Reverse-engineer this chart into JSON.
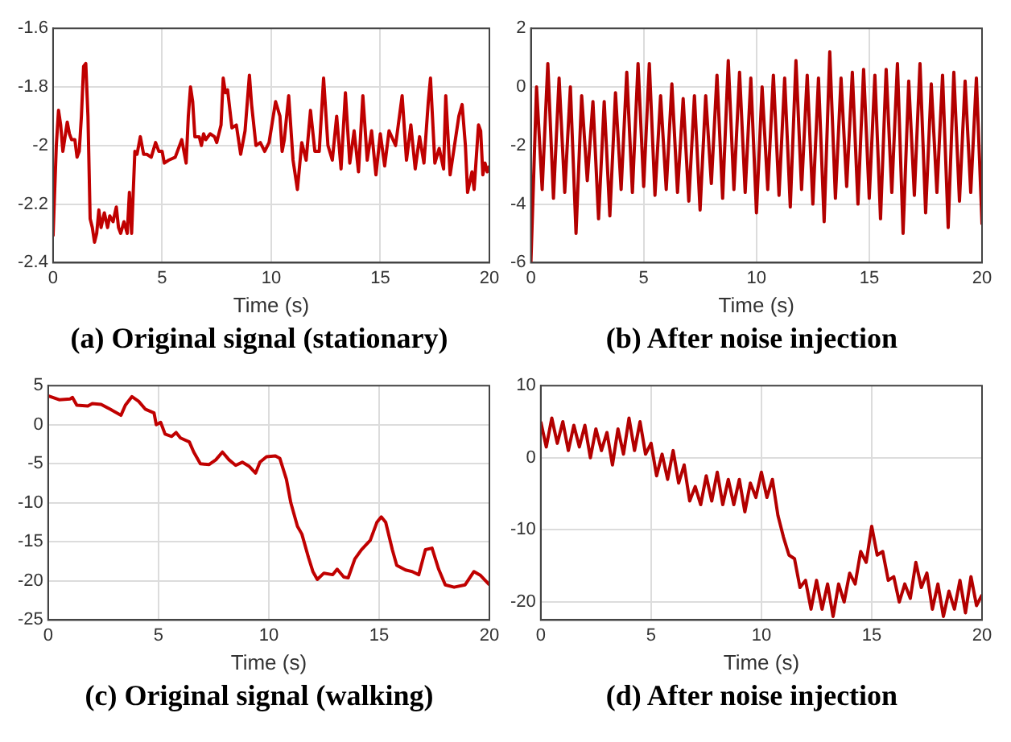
{
  "chart_data": [
    {
      "type": "line",
      "title": "(a) Original signal (stationary)",
      "xlabel": "Time (s)",
      "color": "#c00000",
      "marker": "none",
      "grid": true,
      "xlim": [
        0,
        20
      ],
      "xticks": [
        0,
        5,
        10,
        15,
        20
      ],
      "ylim": [
        -2.4,
        -1.6
      ],
      "yticks": [
        -2.4,
        -2.2,
        -2,
        -1.8,
        -1.6
      ],
      "x": [
        0,
        0.15,
        0.25,
        0.35,
        0.45,
        0.55,
        0.65,
        0.75,
        0.85,
        1.0,
        1.1,
        1.2,
        1.3,
        1.4,
        1.5,
        1.6,
        1.7,
        1.8,
        1.9,
        2.0,
        2.1,
        2.2,
        2.35,
        2.5,
        2.6,
        2.75,
        2.9,
        3.0,
        3.1,
        3.25,
        3.4,
        3.5,
        3.6,
        3.75,
        3.85,
        4.0,
        4.15,
        4.3,
        4.5,
        4.7,
        4.85,
        5.0,
        5.1,
        5.3,
        5.6,
        5.9,
        6.0,
        6.1,
        6.2,
        6.3,
        6.4,
        6.5,
        6.7,
        6.8,
        6.9,
        7.0,
        7.2,
        7.4,
        7.5,
        7.7,
        7.8,
        7.9,
        8.0,
        8.2,
        8.4,
        8.6,
        8.8,
        9.0,
        9.1,
        9.3,
        9.5,
        9.7,
        9.9,
        10.2,
        10.4,
        10.5,
        10.6,
        10.8,
        11.0,
        11.2,
        11.4,
        11.6,
        11.8,
        12.0,
        12.2,
        12.4,
        12.6,
        12.8,
        13.0,
        13.2,
        13.4,
        13.6,
        13.8,
        14.0,
        14.2,
        14.4,
        14.6,
        14.8,
        15.0,
        15.2,
        15.4,
        15.7,
        16.0,
        16.2,
        16.4,
        16.6,
        16.8,
        17.0,
        17.2,
        17.3,
        17.5,
        17.7,
        17.9,
        18.0,
        18.2,
        18.4,
        18.6,
        18.75,
        18.9,
        19.0,
        19.2,
        19.3,
        19.5,
        19.6,
        19.7,
        19.8,
        19.9,
        20.0
      ],
      "values": [
        -2.31,
        -2.0,
        -1.88,
        -1.93,
        -2.02,
        -1.97,
        -1.92,
        -1.96,
        -1.98,
        -1.98,
        -2.04,
        -2.02,
        -1.9,
        -1.73,
        -1.72,
        -1.9,
        -2.25,
        -2.28,
        -2.33,
        -2.3,
        -2.22,
        -2.28,
        -2.23,
        -2.28,
        -2.24,
        -2.26,
        -2.21,
        -2.28,
        -2.3,
        -2.26,
        -2.3,
        -2.16,
        -2.3,
        -2.02,
        -2.03,
        -1.97,
        -2.03,
        -2.03,
        -2.04,
        -1.99,
        -2.02,
        -2.02,
        -2.06,
        -2.05,
        -2.04,
        -1.98,
        -2.02,
        -2.06,
        -1.9,
        -1.8,
        -1.85,
        -1.97,
        -1.97,
        -2.0,
        -1.96,
        -1.98,
        -1.96,
        -1.97,
        -1.99,
        -1.93,
        -1.77,
        -1.82,
        -1.81,
        -1.94,
        -1.93,
        -2.03,
        -1.95,
        -1.76,
        -1.86,
        -2.0,
        -1.99,
        -2.02,
        -1.99,
        -1.85,
        -1.9,
        -2.02,
        -1.98,
        -1.83,
        -2.05,
        -2.15,
        -1.99,
        -2.05,
        -1.88,
        -2.02,
        -2.02,
        -1.77,
        -2.0,
        -2.05,
        -1.9,
        -2.08,
        -1.82,
        -2.06,
        -1.95,
        -2.09,
        -1.83,
        -2.05,
        -1.95,
        -2.1,
        -1.96,
        -2.07,
        -1.95,
        -2.0,
        -1.83,
        -2.05,
        -1.93,
        -2.08,
        -1.97,
        -2.06,
        -1.85,
        -1.77,
        -2.06,
        -2.01,
        -2.08,
        -1.83,
        -2.1,
        -2.0,
        -1.9,
        -1.86,
        -2.0,
        -2.16,
        -2.09,
        -2.15,
        -1.93,
        -1.95,
        -2.1,
        -2.06,
        -2.09,
        -2.07
      ]
    },
    {
      "type": "line",
      "title": "(b) After noise injection",
      "xlabel": "Time (s)",
      "color": "#b30000",
      "marker": "none",
      "grid": true,
      "xlim": [
        0,
        20
      ],
      "xticks": [
        0,
        5,
        10,
        15,
        20
      ],
      "ylim": [
        -6,
        2
      ],
      "yticks": [
        -6,
        -4,
        -2,
        0,
        2
      ],
      "x": [
        0,
        0.25,
        0.5,
        0.75,
        1,
        1.25,
        1.5,
        1.75,
        2,
        2.25,
        2.5,
        2.75,
        3,
        3.25,
        3.5,
        3.75,
        4,
        4.25,
        4.5,
        4.75,
        5,
        5.25,
        5.5,
        5.75,
        6,
        6.25,
        6.5,
        6.75,
        7,
        7.25,
        7.5,
        7.75,
        8,
        8.25,
        8.5,
        8.75,
        9,
        9.25,
        9.5,
        9.75,
        10,
        10.25,
        10.5,
        10.75,
        11,
        11.25,
        11.5,
        11.75,
        12,
        12.25,
        12.5,
        12.75,
        13,
        13.25,
        13.5,
        13.75,
        14,
        14.25,
        14.5,
        14.75,
        15,
        15.25,
        15.5,
        15.75,
        16,
        16.25,
        16.5,
        16.75,
        17,
        17.25,
        17.5,
        17.75,
        18,
        18.25,
        18.5,
        18.75,
        19,
        19.25,
        19.5,
        19.75,
        20
      ],
      "values": [
        -6,
        0,
        -3.5,
        0.8,
        -3.8,
        0.3,
        -3.6,
        0,
        -5,
        -0.3,
        -3.2,
        -0.5,
        -4.5,
        -0.5,
        -4.4,
        -0.2,
        -3.5,
        0.5,
        -3.6,
        0.8,
        -3.4,
        0.8,
        -3.7,
        -0.3,
        -3.5,
        0.1,
        -3.6,
        -0.4,
        -3.9,
        -0.3,
        -4.2,
        -0.3,
        -3.3,
        0.4,
        -3.8,
        0.9,
        -3.5,
        0.5,
        -3.6,
        0.3,
        -4.3,
        0,
        -3.5,
        0.4,
        -3.7,
        0.3,
        -4.1,
        0.9,
        -3.5,
        0.4,
        -4,
        0.3,
        -4.6,
        1.2,
        -3.8,
        0.3,
        -3.4,
        0.5,
        -4,
        0.6,
        -3.8,
        0.4,
        -4.5,
        0.6,
        -3.6,
        0.8,
        -5,
        0.2,
        -3.7,
        0.8,
        -4.3,
        0.1,
        -3.6,
        0.4,
        -4.8,
        0.5,
        -3.9,
        0.2,
        -3.6,
        0.3,
        -4.7
      ]
    },
    {
      "type": "line",
      "title": "(c) Original signal (walking)",
      "xlabel": "Time (s)",
      "color": "#c00000",
      "marker": "none",
      "grid": true,
      "xlim": [
        0,
        20
      ],
      "xticks": [
        0,
        5,
        10,
        15,
        20
      ],
      "ylim": [
        -25,
        5
      ],
      "yticks": [
        -25,
        -20,
        -15,
        -10,
        -5,
        0,
        5
      ],
      "x": [
        0,
        0.5,
        1,
        1.1,
        1.3,
        1.8,
        2,
        2.4,
        2.8,
        3.3,
        3.5,
        3.8,
        4.1,
        4.4,
        4.8,
        4.9,
        5.1,
        5.3,
        5.6,
        5.8,
        6.0,
        6.4,
        6.6,
        6.9,
        7.3,
        7.6,
        7.9,
        8.2,
        8.5,
        8.8,
        9.1,
        9.4,
        9.6,
        9.9,
        10.3,
        10.5,
        10.8,
        11.0,
        11.3,
        11.5,
        11.8,
        12.0,
        12.2,
        12.5,
        12.9,
        13.1,
        13.4,
        13.6,
        13.9,
        14.2,
        14.6,
        14.9,
        15.1,
        15.3,
        15.6,
        15.8,
        16.2,
        16.5,
        16.8,
        17.1,
        17.4,
        17.7,
        18.0,
        18.4,
        18.9,
        19.3,
        19.6,
        20
      ],
      "values": [
        3.7,
        3.2,
        3.3,
        3.5,
        2.5,
        2.4,
        2.7,
        2.6,
        2.0,
        1.2,
        2.5,
        3.6,
        3.0,
        2.0,
        1.5,
        0,
        0.3,
        -1.2,
        -1.5,
        -1.0,
        -1.7,
        -2.2,
        -3.5,
        -5.0,
        -5.1,
        -4.5,
        -3.5,
        -4.5,
        -5.2,
        -4.8,
        -5.3,
        -6.2,
        -4.8,
        -4.1,
        -4.0,
        -4.3,
        -7,
        -10,
        -13,
        -14,
        -17,
        -18.8,
        -19.8,
        -19.0,
        -19.2,
        -18.5,
        -19.5,
        -19.6,
        -17.2,
        -16,
        -14.8,
        -12.5,
        -11.8,
        -12.5,
        -16,
        -18,
        -18.6,
        -18.8,
        -19.2,
        -16,
        -15.8,
        -18.5,
        -20.5,
        -20.8,
        -20.5,
        -18.8,
        -19.3,
        -20.5
      ]
    },
    {
      "type": "line",
      "title": "(d) After noise injection",
      "xlabel": "Time (s)",
      "color": "#b30000",
      "marker": "none",
      "grid": true,
      "xlim": [
        0,
        20
      ],
      "xticks": [
        0,
        5,
        10,
        15,
        20
      ],
      "ylim": [
        -22.5,
        10
      ],
      "yticks": [
        -20,
        -10,
        0,
        10
      ],
      "x": [
        0,
        0.25,
        0.5,
        0.75,
        1,
        1.25,
        1.5,
        1.75,
        2,
        2.25,
        2.5,
        2.75,
        3,
        3.25,
        3.5,
        3.75,
        4,
        4.25,
        4.5,
        4.75,
        5,
        5.25,
        5.5,
        5.75,
        6,
        6.25,
        6.5,
        6.75,
        7,
        7.25,
        7.5,
        7.75,
        8,
        8.25,
        8.5,
        8.75,
        9,
        9.25,
        9.5,
        9.75,
        10,
        10.25,
        10.5,
        10.75,
        11,
        11.25,
        11.5,
        11.75,
        12,
        12.25,
        12.5,
        12.75,
        13,
        13.25,
        13.5,
        13.75,
        14,
        14.25,
        14.5,
        14.75,
        15,
        15.25,
        15.5,
        15.75,
        16,
        16.25,
        16.5,
        16.75,
        17,
        17.25,
        17.5,
        17.75,
        18,
        18.25,
        18.5,
        18.75,
        19,
        19.25,
        19.5,
        19.75,
        20
      ],
      "values": [
        5,
        1.5,
        5.5,
        2,
        5,
        1,
        4.5,
        1.5,
        4.5,
        0,
        4,
        1,
        3.5,
        -1,
        4,
        0.5,
        5.5,
        1,
        5,
        0.5,
        2,
        -2.5,
        0.5,
        -3,
        1,
        -3.5,
        -1,
        -6,
        -4,
        -6.5,
        -2.5,
        -6,
        -2,
        -6.5,
        -3,
        -6.5,
        -3,
        -7.5,
        -3.5,
        -5.5,
        -2,
        -5.5,
        -3,
        -8,
        -11,
        -13.5,
        -14,
        -18,
        -17,
        -21,
        -17,
        -21,
        -17.5,
        -22,
        -17.5,
        -20,
        -16,
        -17.5,
        -13,
        -14.5,
        -9.5,
        -13.5,
        -13,
        -17,
        -16.5,
        -20,
        -17.5,
        -19.5,
        -14.5,
        -18,
        -16,
        -21,
        -17.5,
        -22,
        -18.5,
        -21,
        -17,
        -21.5,
        -16.5,
        -20.5,
        -19
      ]
    }
  ]
}
